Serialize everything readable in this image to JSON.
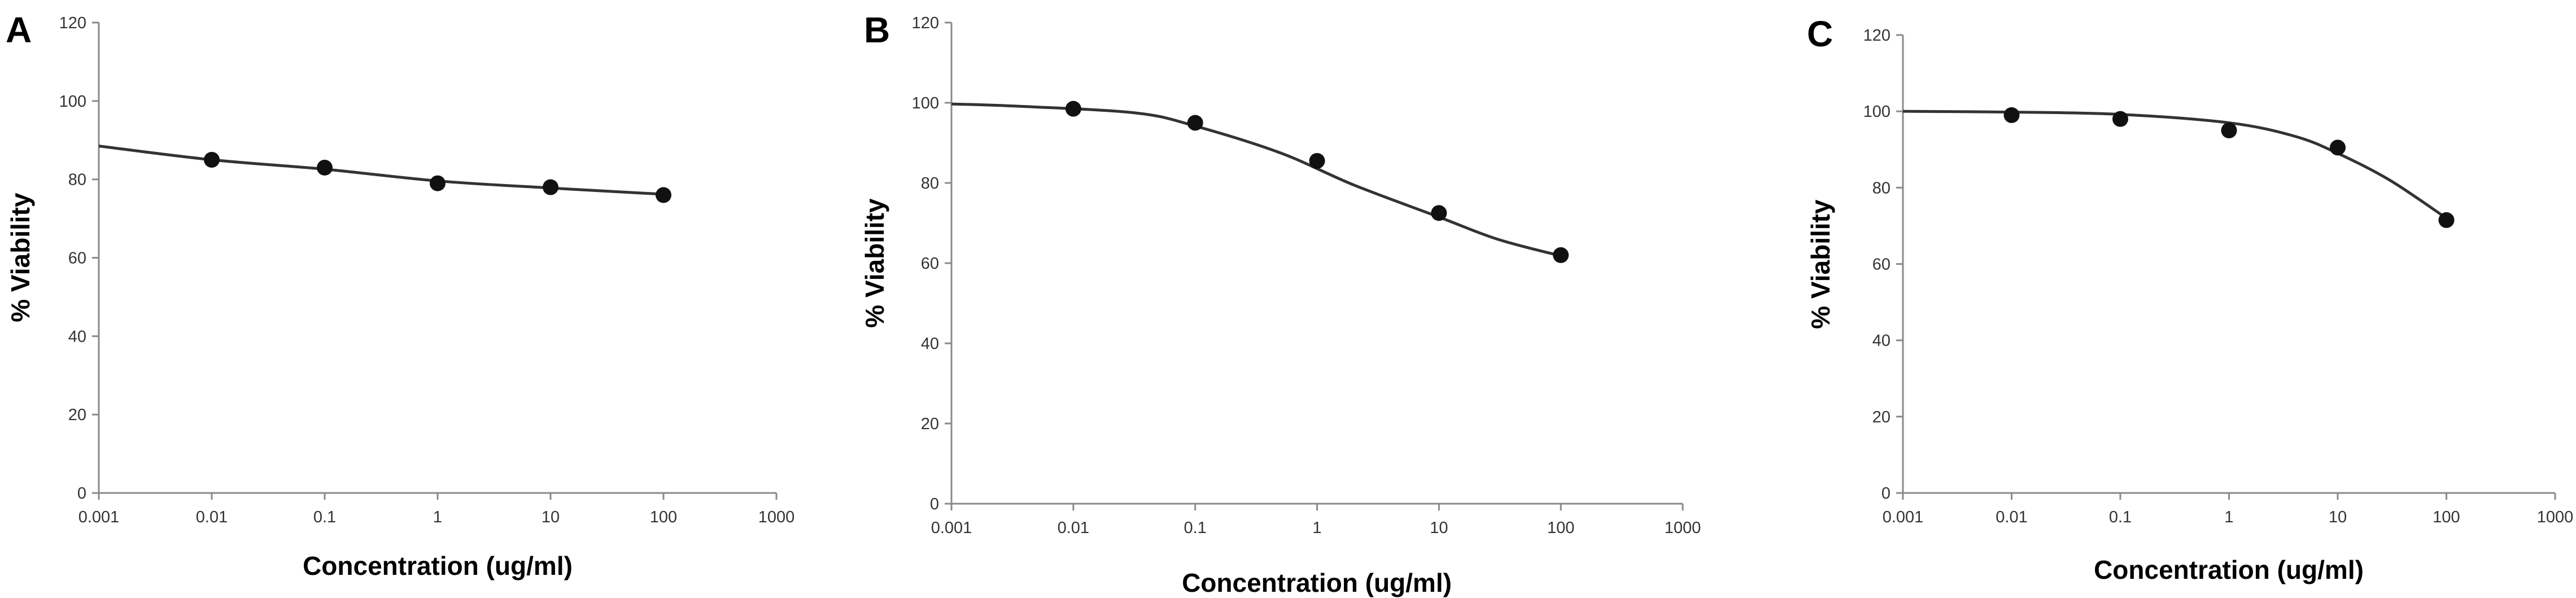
{
  "chart_data": [
    {
      "panel": "A",
      "type": "scatter",
      "x_scale": "log",
      "x": [
        0.01,
        0.1,
        1,
        10,
        100
      ],
      "series": [
        {
          "values": [
            85,
            83,
            79,
            78,
            76
          ],
          "curve": [
            88.5,
            85,
            82.6,
            79.6,
            77.8,
            76.2
          ]
        }
      ],
      "curve_x": [
        0.001,
        0.01,
        0.1,
        1,
        10,
        100
      ],
      "xlabel": "Concentration (ug/ml)",
      "ylabel": "% Viability",
      "xticks": [
        "0.001",
        "0.01",
        "0.1",
        "1",
        "10",
        "100",
        "1000"
      ],
      "yticks": [
        "0",
        "20",
        "40",
        "60",
        "80",
        "100",
        "120"
      ],
      "xlim": [
        0.001,
        1000
      ],
      "ylim": [
        0,
        120
      ]
    },
    {
      "panel": "B",
      "type": "scatter",
      "x_scale": "log",
      "x": [
        0.01,
        0.1,
        1,
        10,
        100
      ],
      "series": [
        {
          "values": [
            98.5,
            95,
            85.5,
            72.5,
            62
          ],
          "curve": [
            99.7,
            99.2,
            97.5,
            94.2,
            87.5,
            79.5,
            71.5,
            66,
            61.8
          ]
        }
      ],
      "curve_x": [
        0.001,
        0.00316,
        0.0316,
        0.1,
        0.5,
        2,
        10,
        30,
        100
      ],
      "xlabel": "Concentration (ug/ml)",
      "ylabel": "% Viability",
      "xticks": [
        "0.001",
        "0.01",
        "0.1",
        "1",
        "10",
        "100",
        "1000"
      ],
      "yticks": [
        "0",
        "20",
        "40",
        "60",
        "80",
        "100",
        "120"
      ],
      "xlim": [
        0.001,
        1000
      ],
      "ylim": [
        0,
        120
      ]
    },
    {
      "panel": "C",
      "type": "scatter",
      "x_scale": "log",
      "x": [
        0.01,
        0.1,
        1,
        10,
        100
      ],
      "series": [
        {
          "values": [
            99,
            98,
            95,
            90.5,
            71.5
          ],
          "curve": [
            100,
            99.8,
            99.2,
            97,
            93.5,
            89,
            82,
            72
          ]
        }
      ],
      "curve_x": [
        0.001,
        0.01,
        0.1,
        1,
        4,
        10,
        30,
        100
      ],
      "xlabel": "Concentration (ug/ml)",
      "ylabel": "% Viability",
      "xticks": [
        "0.001",
        "0.01",
        "0.1",
        "1",
        "10",
        "100",
        "1000"
      ],
      "yticks": [
        "0",
        "20",
        "40",
        "60",
        "80",
        "100",
        "120"
      ],
      "xlim": [
        0.001,
        1000
      ],
      "ylim": [
        0,
        120
      ]
    }
  ]
}
